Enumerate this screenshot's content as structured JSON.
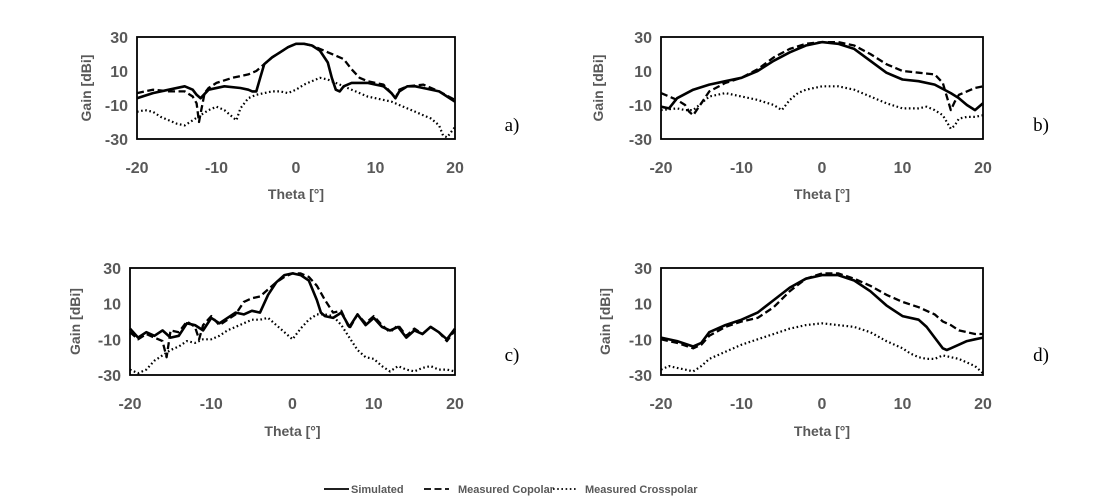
{
  "chart_data": [
    {
      "type": "line",
      "panel_label": "a)",
      "xlabel": "Theta [°]",
      "ylabel": "Gain [dBi]",
      "xlim": [
        -20,
        20
      ],
      "ylim": [
        -30,
        30
      ],
      "xticks": [
        "-20",
        "-10",
        "0",
        "10",
        "20"
      ],
      "yticks": [
        "30",
        "10",
        "-10",
        "-30"
      ],
      "series": [
        {
          "name": "Simulated",
          "style": "solid",
          "x": [
            -20,
            -18,
            -16,
            -14,
            -13,
            -12.5,
            -12,
            -11,
            -9,
            -7,
            -6,
            -5.5,
            -5,
            -4.5,
            -4,
            -3,
            -2,
            -1,
            0,
            1,
            2,
            3,
            4,
            4.5,
            5,
            5.5,
            6,
            7,
            8,
            9,
            10,
            11,
            12,
            12.5,
            13,
            14,
            15,
            16,
            18,
            20
          ],
          "y": [
            -6,
            -3,
            -1,
            1,
            -1,
            -4,
            -6,
            -1,
            1,
            0,
            -1,
            -2,
            -2,
            6,
            14,
            18,
            21,
            24,
            26,
            26,
            25,
            22,
            15,
            6,
            -1,
            -2,
            1,
            3,
            3,
            3,
            2,
            1,
            -3,
            -6,
            -2,
            1,
            1,
            0,
            -2,
            -8
          ]
        },
        {
          "name": "Measured Copolar",
          "style": "dashed",
          "x": [
            -20,
            -18,
            -16,
            -14,
            -13,
            -12.5,
            -12.2,
            -12,
            -11.5,
            -11,
            -10,
            -8,
            -6,
            -5,
            -4,
            -3,
            -2,
            -1,
            0,
            1,
            2,
            3,
            4,
            5,
            6,
            7,
            8,
            9,
            10,
            11,
            12,
            12.5,
            13,
            14,
            16,
            18,
            20
          ],
          "y": [
            -3,
            -1,
            -2,
            -2,
            -5,
            -9,
            -20,
            -15,
            -3,
            0,
            3,
            6,
            8,
            10,
            14,
            18,
            21,
            24,
            26,
            26,
            25,
            23,
            21,
            19,
            17,
            11,
            6,
            4,
            3,
            2,
            -3,
            -6,
            -1,
            1,
            2,
            -2,
            -7
          ]
        },
        {
          "name": "Measured Crosspolar",
          "style": "dotted",
          "x": [
            -20,
            -19,
            -18,
            -17,
            -16,
            -15,
            -14,
            -13,
            -12,
            -11,
            -10,
            -9,
            -8,
            -7.5,
            -7,
            -6,
            -5,
            -4,
            -3,
            -2,
            -1,
            0,
            1,
            2,
            3,
            4,
            5,
            6,
            7,
            8,
            9,
            10,
            11,
            12,
            13,
            14,
            15,
            16,
            17,
            18,
            18.5,
            19,
            19.5,
            20
          ],
          "y": [
            -14,
            -13,
            -14,
            -17,
            -19,
            -21,
            -22,
            -19,
            -16,
            -13,
            -11,
            -13,
            -17,
            -19,
            -12,
            -6,
            -4,
            -3,
            -2,
            -2,
            -3,
            -1,
            2,
            4,
            6,
            5,
            3,
            1,
            -1,
            -3,
            -5,
            -6,
            -7,
            -8,
            -10,
            -12,
            -14,
            -16,
            -18,
            -22,
            -28,
            -29,
            -26,
            -23
          ]
        }
      ]
    },
    {
      "type": "line",
      "panel_label": "b)",
      "xlabel": "Theta [°]",
      "ylabel": "Gain [dBi]",
      "xlim": [
        -20,
        20
      ],
      "ylim": [
        -30,
        30
      ],
      "xticks": [
        "-20",
        "-10",
        "0",
        "10",
        "20"
      ],
      "yticks": [
        "30",
        "10",
        "-10",
        "-30"
      ],
      "series": [
        {
          "name": "Simulated",
          "style": "solid",
          "x": [
            -20,
            -19,
            -18,
            -16,
            -14,
            -12,
            -10,
            -8,
            -6,
            -4,
            -2,
            0,
            2,
            4,
            6,
            8,
            10,
            12,
            14,
            16,
            17,
            18,
            19,
            20
          ],
          "y": [
            -11,
            -12,
            -6,
            -1,
            2,
            4,
            6,
            10,
            16,
            21,
            25,
            27,
            26,
            23,
            16,
            9,
            5,
            4,
            2,
            -3,
            -6,
            -10,
            -13,
            -9
          ]
        },
        {
          "name": "Measured Copolar",
          "style": "dashed",
          "x": [
            -20,
            -19,
            -18,
            -17,
            -16.5,
            -16,
            -15,
            -14,
            -12,
            -10,
            -8,
            -6,
            -4,
            -2,
            0,
            2,
            4,
            6,
            8,
            10,
            12,
            14,
            15,
            15.5,
            16,
            16.5,
            17,
            18,
            19,
            20
          ],
          "y": [
            -3,
            -5,
            -7,
            -10,
            -14,
            -16,
            -9,
            -2,
            3,
            6,
            11,
            18,
            23,
            26,
            27,
            27,
            25,
            20,
            14,
            10,
            9,
            8,
            3,
            -5,
            -13,
            -8,
            -4,
            -2,
            0,
            1
          ]
        },
        {
          "name": "Measured Crosspolar",
          "style": "dotted",
          "x": [
            -20,
            -18,
            -17,
            -16,
            -15,
            -14,
            -12,
            -10,
            -8,
            -6,
            -5,
            -4,
            -3,
            -2,
            -1,
            0,
            1,
            2,
            3,
            4,
            6,
            8,
            10,
            12,
            13,
            14,
            15,
            15.5,
            16,
            16.5,
            17,
            18,
            19,
            20
          ],
          "y": [
            -13,
            -12,
            -13,
            -13,
            -9,
            -5,
            -3,
            -5,
            -7,
            -10,
            -13,
            -7,
            -3,
            -1,
            0,
            1,
            1,
            1,
            0,
            -1,
            -5,
            -9,
            -12,
            -12,
            -11,
            -13,
            -16,
            -20,
            -24,
            -22,
            -18,
            -17,
            -17,
            -16
          ]
        }
      ]
    },
    {
      "type": "line",
      "panel_label": "c)",
      "xlabel": "Theta [°]",
      "ylabel": "Gain [dBi]",
      "xlim": [
        -20,
        20
      ],
      "ylim": [
        -30,
        30
      ],
      "xticks": [
        "-20",
        "-10",
        "0",
        "10",
        "20"
      ],
      "yticks": [
        "30",
        "10",
        "-10",
        "-30"
      ],
      "series": [
        {
          "name": "Simulated",
          "style": "solid",
          "x": [
            -20,
            -19,
            -18,
            -17,
            -16,
            -15,
            -14,
            -13,
            -12,
            -11,
            -10,
            -9,
            -8,
            -7,
            -6,
            -5,
            -4,
            -3,
            -2,
            -1,
            0,
            1,
            2,
            3,
            3.5,
            4,
            5,
            6,
            7,
            8,
            9,
            10,
            11,
            12,
            13,
            14,
            15,
            16,
            17,
            18,
            19,
            20
          ],
          "y": [
            -4,
            -9,
            -6,
            -8,
            -5,
            -9,
            -8,
            -1,
            -2,
            -5,
            2,
            -1,
            2,
            5,
            4,
            6,
            5,
            15,
            22,
            26,
            27,
            26,
            23,
            12,
            5,
            3,
            2,
            5,
            -3,
            4,
            -2,
            2,
            -3,
            -5,
            -3,
            -9,
            -5,
            -7,
            -3,
            -6,
            -10,
            -4
          ]
        },
        {
          "name": "Measured Copolar",
          "style": "dashed",
          "x": [
            -20,
            -19,
            -18,
            -17,
            -16,
            -15.5,
            -15,
            -14,
            -13,
            -12,
            -11.5,
            -11,
            -10,
            -9,
            -8,
            -7,
            -6,
            -5,
            -4,
            -3,
            -2,
            -1,
            0,
            1,
            2,
            3,
            4,
            5,
            6,
            7,
            8,
            9,
            10,
            11,
            12,
            13,
            14,
            15,
            16,
            17,
            18,
            19,
            20
          ],
          "y": [
            -6,
            -10,
            -7,
            -9,
            -11,
            -20,
            -5,
            -6,
            0,
            -3,
            -10,
            -2,
            3,
            -2,
            1,
            4,
            11,
            13,
            14,
            18,
            22,
            25,
            27,
            27,
            25,
            20,
            12,
            5,
            6,
            -4,
            4,
            -1,
            3,
            -2,
            -6,
            -2,
            -8,
            -4,
            -7,
            -3,
            -6,
            -11,
            -5
          ]
        },
        {
          "name": "Measured Crosspolar",
          "style": "dotted",
          "x": [
            -20,
            -19,
            -18,
            -17,
            -16,
            -15,
            -14,
            -13,
            -12,
            -11,
            -10,
            -9,
            -8,
            -7,
            -6,
            -5,
            -4,
            -3,
            -2,
            -1,
            0,
            1,
            2,
            3,
            4,
            5,
            6,
            7,
            8,
            9,
            10,
            11,
            12,
            13,
            14,
            15,
            16,
            17,
            18,
            19,
            20
          ],
          "y": [
            -27,
            -29,
            -27,
            -22,
            -19,
            -16,
            -14,
            -11,
            -12,
            -10,
            -10,
            -8,
            -5,
            -3,
            -1,
            1,
            1,
            2,
            -2,
            -6,
            -10,
            -4,
            1,
            4,
            4,
            3,
            -2,
            -9,
            -16,
            -20,
            -21,
            -25,
            -28,
            -25,
            -27,
            -28,
            -26,
            -25,
            -27,
            -27,
            -28
          ]
        }
      ]
    },
    {
      "type": "line",
      "panel_label": "d)",
      "xlabel": "Theta [°]",
      "ylabel": "Gain [dBi]",
      "xlim": [
        -20,
        20
      ],
      "ylim": [
        -30,
        30
      ],
      "xticks": [
        "-20",
        "-10",
        "0",
        "10",
        "20"
      ],
      "yticks": [
        "30",
        "10",
        "-10",
        "-30"
      ],
      "series": [
        {
          "name": "Simulated",
          "style": "solid",
          "x": [
            -20,
            -18,
            -16,
            -15,
            -14,
            -12,
            -10,
            -8,
            -6,
            -4,
            -2,
            0,
            2,
            4,
            6,
            8,
            10,
            12,
            13,
            14,
            15,
            15.5,
            16,
            17,
            18,
            19,
            20
          ],
          "y": [
            -9,
            -11,
            -14,
            -12,
            -6,
            -2,
            1,
            5,
            12,
            19,
            24,
            26,
            26,
            23,
            17,
            9,
            3,
            1,
            -3,
            -9,
            -15,
            -16,
            -15,
            -13,
            -11,
            -10,
            -9
          ]
        },
        {
          "name": "Measured Copolar",
          "style": "dashed",
          "x": [
            -20,
            -18,
            -16,
            -15,
            -14,
            -12,
            -10,
            -8,
            -6,
            -4,
            -2,
            0,
            2,
            4,
            6,
            8,
            10,
            12,
            14,
            15,
            16,
            17,
            18,
            19,
            20
          ],
          "y": [
            -10,
            -12,
            -15,
            -13,
            -8,
            -3,
            0,
            2,
            8,
            17,
            24,
            27,
            27,
            24,
            20,
            15,
            11,
            8,
            4,
            0,
            -2,
            -5,
            -6,
            -7,
            -7
          ]
        },
        {
          "name": "Measured Crosspolar",
          "style": "dotted",
          "x": [
            -20,
            -19,
            -18,
            -17,
            -16,
            -15,
            -14,
            -12,
            -10,
            -8,
            -6,
            -4,
            -2,
            0,
            2,
            4,
            6,
            8,
            10,
            11,
            12,
            13,
            14,
            15,
            16,
            17,
            18,
            19,
            20
          ],
          "y": [
            -27,
            -25,
            -26,
            -27,
            -28,
            -25,
            -21,
            -17,
            -13,
            -10,
            -7,
            -4,
            -2,
            -1,
            -2,
            -3,
            -6,
            -11,
            -15,
            -18,
            -20,
            -21,
            -21,
            -19,
            -20,
            -21,
            -23,
            -25,
            -29
          ]
        }
      ]
    }
  ],
  "legend": {
    "items": [
      {
        "label": "Simulated",
        "style": "solid"
      },
      {
        "label": "Measured Copolar",
        "style": "dashed"
      },
      {
        "label": "Measured Crosspolar",
        "style": "dotted"
      }
    ]
  }
}
